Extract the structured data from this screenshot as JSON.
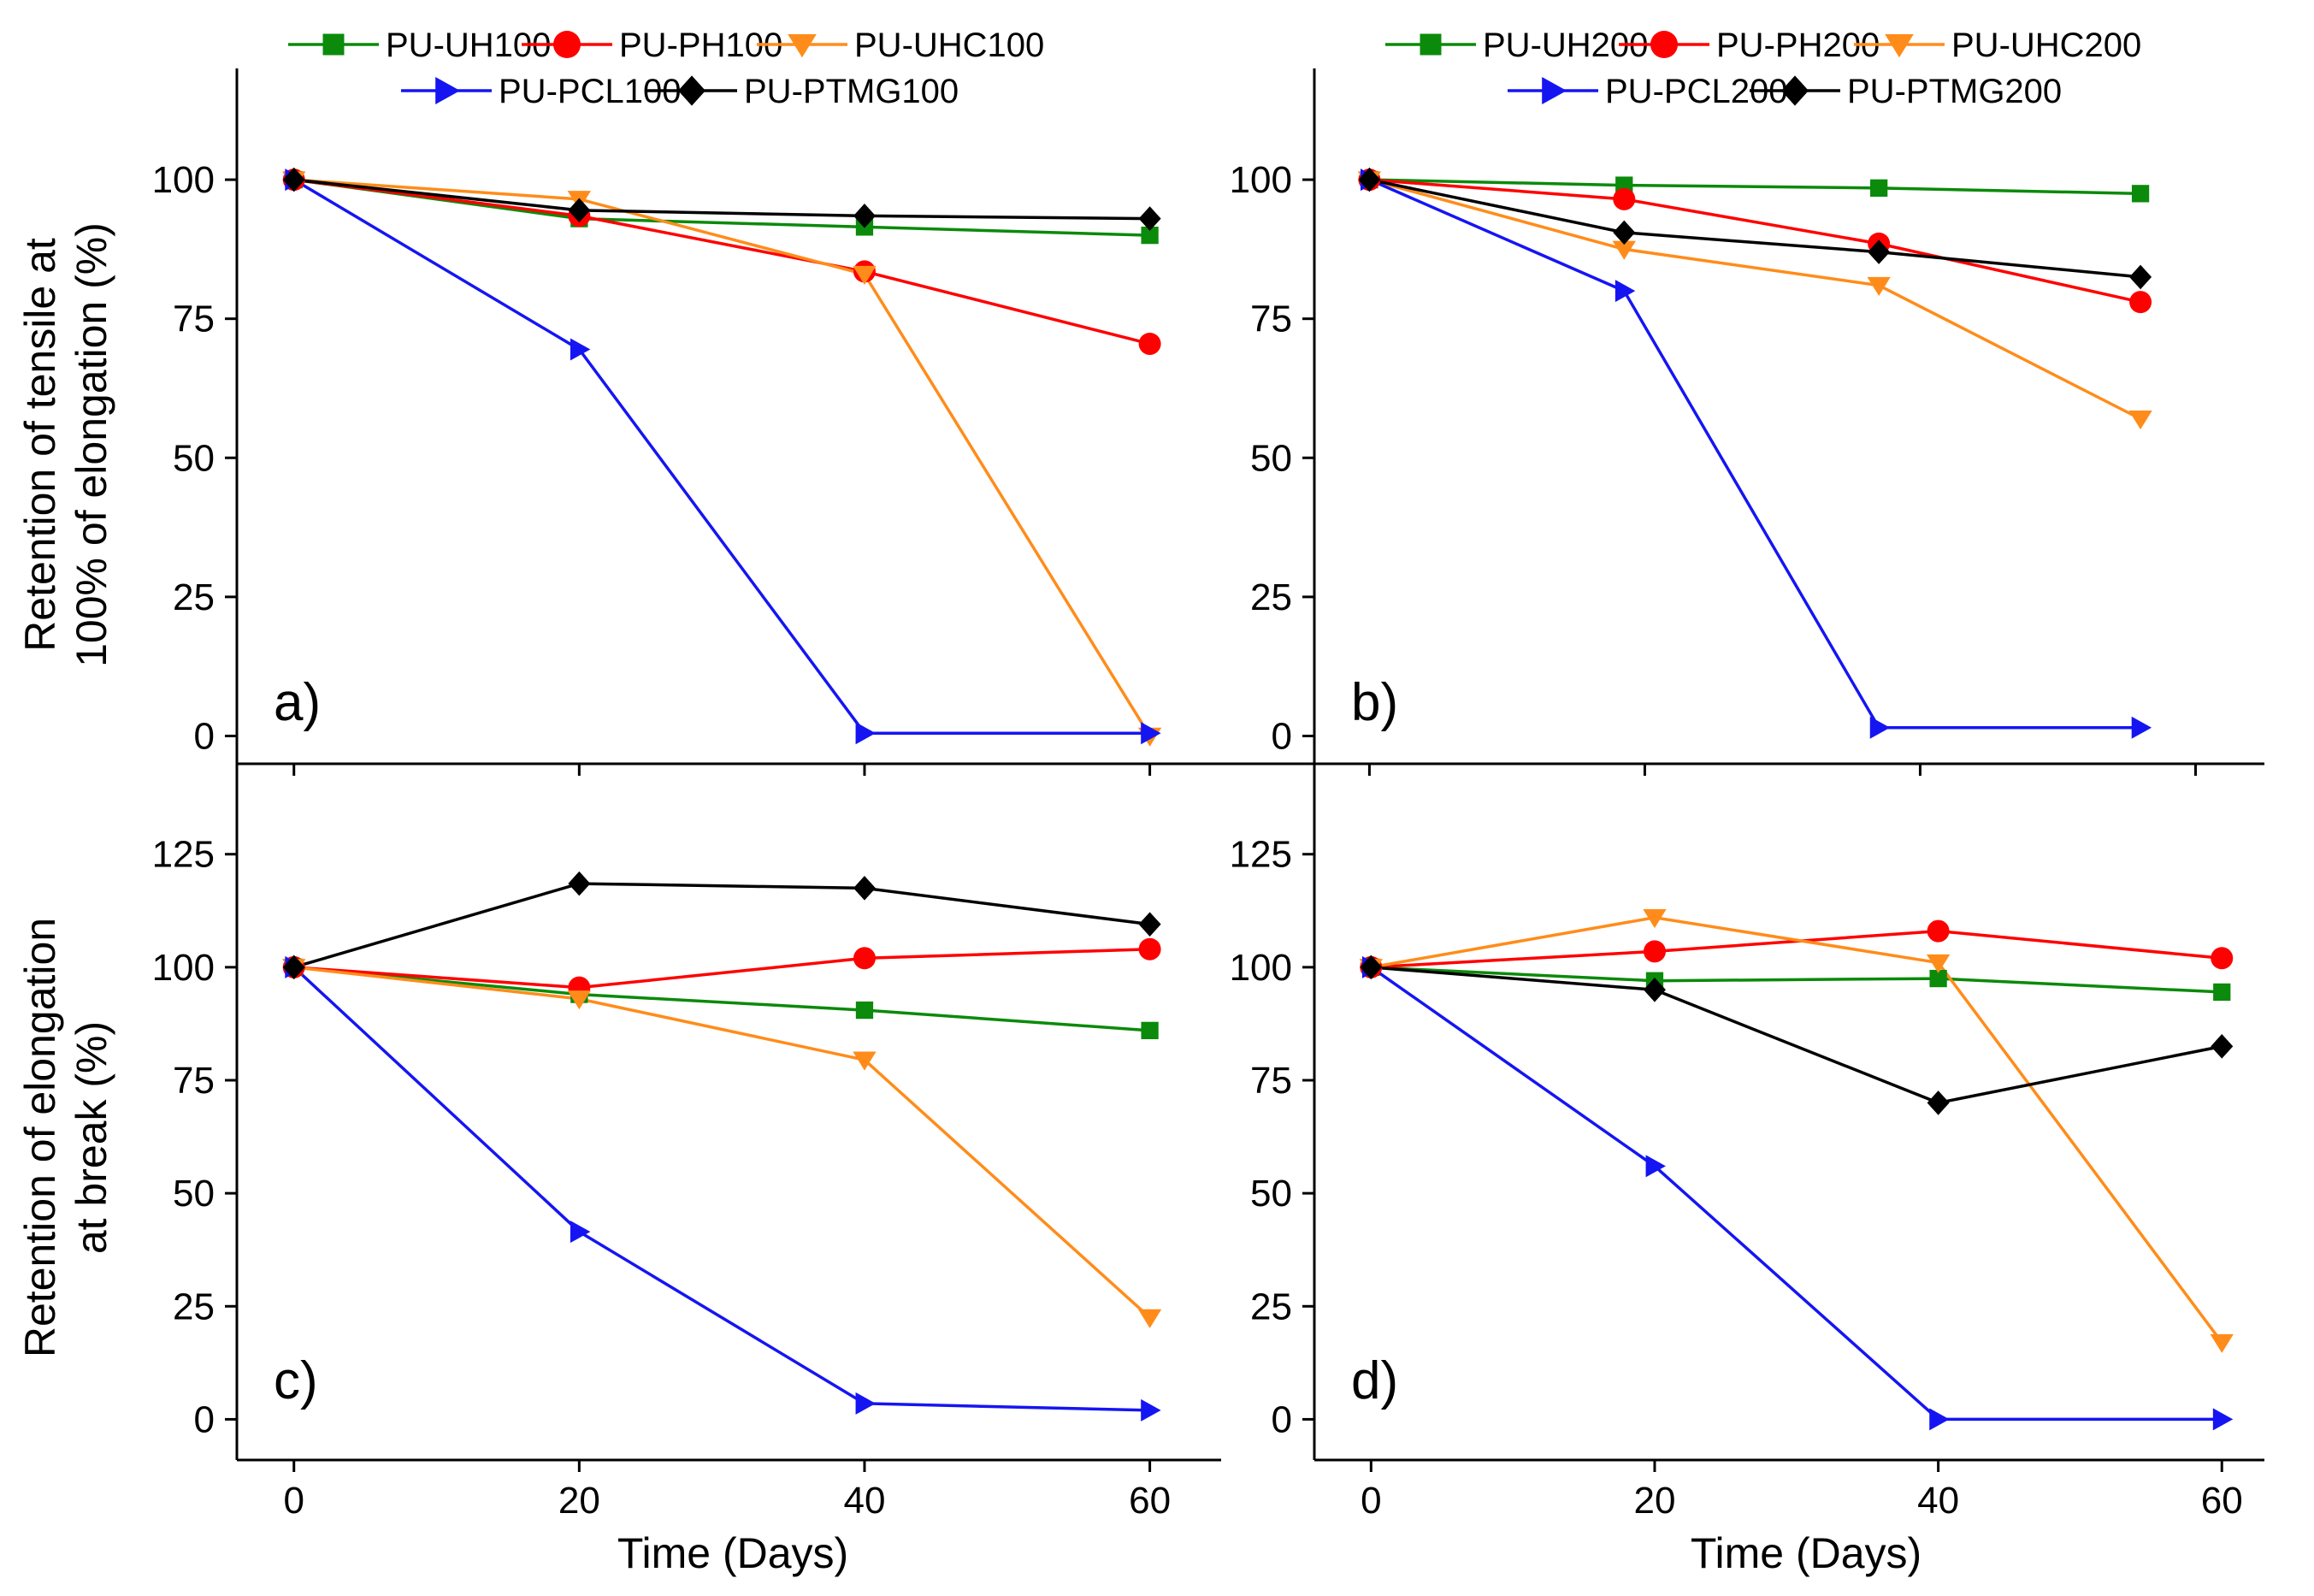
{
  "colors": {
    "UH": "#0b8a0b",
    "PH": "#ff0000",
    "UHC": "#ff8c1a",
    "PCL": "#1515f2",
    "PTMG": "#000000"
  },
  "legend_left": {
    "rows": [
      [
        {
          "label": "PU-UH100",
          "key": "UH",
          "marker": "square"
        },
        {
          "label": "PU-PH100",
          "key": "PH",
          "marker": "circle"
        },
        {
          "label": "PU-UHC100",
          "key": "UHC",
          "marker": "triangle-down"
        }
      ],
      [
        {
          "label": "PU-PCL100",
          "key": "PCL",
          "marker": "triangle-right"
        },
        {
          "label": "PU-PTMG100",
          "key": "PTMG",
          "marker": "diamond"
        }
      ]
    ]
  },
  "legend_right": {
    "rows": [
      [
        {
          "label": "PU-UH200",
          "key": "UH",
          "marker": "square"
        },
        {
          "label": "PU-PH200",
          "key": "PH",
          "marker": "circle"
        },
        {
          "label": "PU-UHC200",
          "key": "UHC",
          "marker": "triangle-down"
        }
      ],
      [
        {
          "label": "PU-PCL200",
          "key": "PCL",
          "marker": "triangle-right"
        },
        {
          "label": "PU-PTMG200",
          "key": "PTMG",
          "marker": "diamond"
        }
      ]
    ]
  },
  "y_axis_labels": {
    "top_line1": "Retention of tensile at",
    "top_line2": "100% of elongation (%)",
    "bottom_line1": "Retention of elongation",
    "bottom_line2": "at break (%)"
  },
  "chart_data": [
    {
      "id": "a",
      "type": "line",
      "panel_label": "a)",
      "xlabel": "Time (Days)",
      "ylabel": "Retention of tensile at 100% of elongation (%)",
      "xlim": [
        -4,
        65
      ],
      "ylim": [
        -5,
        120
      ],
      "xticks": [
        0,
        20,
        40,
        60
      ],
      "yticks": [
        0,
        25,
        50,
        75,
        100
      ],
      "show_xtick_labels": false,
      "series": [
        {
          "name": "PU-UH100",
          "key": "UH",
          "marker": "square",
          "x": [
            0,
            20,
            40,
            60
          ],
          "y": [
            100,
            93,
            91.5,
            90
          ]
        },
        {
          "name": "PU-PH100",
          "key": "PH",
          "marker": "circle",
          "x": [
            0,
            20,
            40,
            60
          ],
          "y": [
            100,
            93.5,
            83.5,
            70.5
          ]
        },
        {
          "name": "PU-UHC100",
          "key": "UHC",
          "marker": "triangle-down",
          "x": [
            0,
            20,
            40,
            60
          ],
          "y": [
            100,
            96.5,
            83,
            0
          ]
        },
        {
          "name": "PU-PCL100",
          "key": "PCL",
          "marker": "triangle-right",
          "x": [
            0,
            20,
            40,
            60
          ],
          "y": [
            100,
            69.5,
            0.5,
            0.5
          ]
        },
        {
          "name": "PU-PTMG100",
          "key": "PTMG",
          "marker": "diamond",
          "x": [
            0,
            20,
            40,
            60
          ],
          "y": [
            100,
            94.5,
            93.5,
            93
          ]
        }
      ]
    },
    {
      "id": "b",
      "type": "line",
      "panel_label": "b)",
      "xlabel": "Time (Days)",
      "ylabel": "",
      "xlim": [
        -4,
        65
      ],
      "ylim": [
        -5,
        120
      ],
      "xticks": [
        0,
        20,
        40,
        60
      ],
      "yticks": [
        0,
        25,
        50,
        75,
        100
      ],
      "show_xtick_labels": false,
      "series": [
        {
          "name": "PU-UH200",
          "key": "UH",
          "marker": "square",
          "x": [
            0,
            18.5,
            37,
            56
          ],
          "y": [
            100,
            99,
            98.5,
            97.5
          ]
        },
        {
          "name": "PU-PH200",
          "key": "PH",
          "marker": "circle",
          "x": [
            0,
            18.5,
            37,
            56
          ],
          "y": [
            100,
            96.5,
            88.5,
            78
          ]
        },
        {
          "name": "PU-UHC200",
          "key": "UHC",
          "marker": "triangle-down",
          "x": [
            0,
            18.5,
            37,
            56
          ],
          "y": [
            100,
            87.5,
            81,
            57
          ]
        },
        {
          "name": "PU-PCL200",
          "key": "PCL",
          "marker": "triangle-right",
          "x": [
            0,
            18.5,
            37,
            56
          ],
          "y": [
            100,
            80,
            1.5,
            1.5
          ]
        },
        {
          "name": "PU-PTMG200",
          "key": "PTMG",
          "marker": "diamond",
          "x": [
            0,
            18.5,
            37,
            56
          ],
          "y": [
            100,
            90.5,
            87,
            82.5
          ]
        }
      ]
    },
    {
      "id": "c",
      "type": "line",
      "panel_label": "c)",
      "xlabel": "Time (Days)",
      "ylabel": "Retention of elongation at break (%)",
      "xlim": [
        -4,
        65
      ],
      "ylim": [
        -9,
        145
      ],
      "xticks": [
        0,
        20,
        40,
        60
      ],
      "yticks": [
        0,
        25,
        50,
        75,
        100,
        125
      ],
      "show_xtick_labels": true,
      "series": [
        {
          "name": "PU-UH100",
          "key": "UH",
          "marker": "square",
          "x": [
            0,
            20,
            40,
            60
          ],
          "y": [
            100,
            94,
            90.5,
            86
          ]
        },
        {
          "name": "PU-PH100",
          "key": "PH",
          "marker": "circle",
          "x": [
            0,
            20,
            40,
            60
          ],
          "y": [
            100,
            95.5,
            102,
            104
          ]
        },
        {
          "name": "PU-UHC100",
          "key": "UHC",
          "marker": "triangle-down",
          "x": [
            0,
            20,
            40,
            60
          ],
          "y": [
            100,
            93,
            79.5,
            22.5
          ]
        },
        {
          "name": "PU-PCL100",
          "key": "PCL",
          "marker": "triangle-right",
          "x": [
            0,
            20,
            40,
            60
          ],
          "y": [
            100,
            41.5,
            3.5,
            2
          ]
        },
        {
          "name": "PU-PTMG100",
          "key": "PTMG",
          "marker": "diamond",
          "x": [
            0,
            20,
            40,
            60
          ],
          "y": [
            100,
            118.5,
            117.5,
            109.5
          ]
        }
      ]
    },
    {
      "id": "d",
      "type": "line",
      "panel_label": "d)",
      "xlabel": "Time (Days)",
      "ylabel": "",
      "xlim": [
        -4,
        63
      ],
      "ylim": [
        -9,
        145
      ],
      "xticks": [
        0,
        20,
        40,
        60
      ],
      "yticks": [
        0,
        25,
        50,
        75,
        100,
        125
      ],
      "show_xtick_labels": true,
      "series": [
        {
          "name": "PU-UH200",
          "key": "UH",
          "marker": "square",
          "x": [
            0,
            20,
            40,
            60
          ],
          "y": [
            100,
            97,
            97.5,
            94.5
          ]
        },
        {
          "name": "PU-PH200",
          "key": "PH",
          "marker": "circle",
          "x": [
            0,
            20,
            40,
            60
          ],
          "y": [
            100,
            103.5,
            108,
            102
          ]
        },
        {
          "name": "PU-UHC200",
          "key": "UHC",
          "marker": "triangle-down",
          "x": [
            0,
            20,
            40,
            60
          ],
          "y": [
            100,
            111,
            101,
            17
          ]
        },
        {
          "name": "PU-PCL200",
          "key": "PCL",
          "marker": "triangle-right",
          "x": [
            0,
            20,
            40,
            60
          ],
          "y": [
            100,
            56,
            0,
            0
          ]
        },
        {
          "name": "PU-PTMG200",
          "key": "PTMG",
          "marker": "diamond",
          "x": [
            0,
            20,
            40,
            60
          ],
          "y": [
            100,
            95,
            70,
            82.5
          ]
        }
      ]
    }
  ]
}
